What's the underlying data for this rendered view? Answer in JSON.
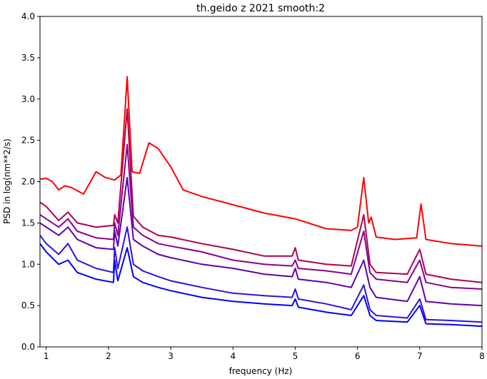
{
  "chart_data": {
    "type": "line",
    "title": "th.geido z 2021 smooth:2",
    "xlabel": "frequency (Hz)",
    "ylabel": "PSD in log(nm**2/s)",
    "xlim": [
      0.9,
      8.0
    ],
    "ylim": [
      0.0,
      4.0
    ],
    "grid": false,
    "xticks": [
      1,
      2,
      3,
      4,
      5,
      6,
      7,
      8
    ],
    "xtick_labels": [
      "1",
      "2",
      "3",
      "4",
      "5",
      "6",
      "7",
      "8"
    ],
    "yticks": [
      0.0,
      0.5,
      1.0,
      1.5,
      2.0,
      2.5,
      3.0,
      3.5,
      4.0
    ],
    "ytick_labels": [
      "0.0",
      "0.5",
      "1.0",
      "1.5",
      "2.0",
      "2.5",
      "3.0",
      "3.5",
      "4.0"
    ],
    "series": [
      {
        "color": "#ff0000",
        "points": [
          [
            0.9,
            2.03
          ],
          [
            1.0,
            2.04
          ],
          [
            1.1,
            2.0
          ],
          [
            1.2,
            1.9
          ],
          [
            1.3,
            1.95
          ],
          [
            1.4,
            1.93
          ],
          [
            1.6,
            1.85
          ],
          [
            1.8,
            2.12
          ],
          [
            1.95,
            2.05
          ],
          [
            2.1,
            2.02
          ],
          [
            2.2,
            2.08
          ],
          [
            2.3,
            3.27
          ],
          [
            2.38,
            2.12
          ],
          [
            2.5,
            2.1
          ],
          [
            2.65,
            2.47
          ],
          [
            2.8,
            2.4
          ],
          [
            3.0,
            2.18
          ],
          [
            3.2,
            1.9
          ],
          [
            3.5,
            1.82
          ],
          [
            4.0,
            1.72
          ],
          [
            4.5,
            1.62
          ],
          [
            5.0,
            1.55
          ],
          [
            5.5,
            1.43
          ],
          [
            5.9,
            1.41
          ],
          [
            6.0,
            1.45
          ],
          [
            6.1,
            2.05
          ],
          [
            6.18,
            1.5
          ],
          [
            6.22,
            1.57
          ],
          [
            6.3,
            1.33
          ],
          [
            6.6,
            1.3
          ],
          [
            6.95,
            1.32
          ],
          [
            7.02,
            1.73
          ],
          [
            7.1,
            1.3
          ],
          [
            7.5,
            1.25
          ],
          [
            8.0,
            1.22
          ]
        ]
      },
      {
        "color": "#b0004f",
        "points": [
          [
            0.9,
            1.75
          ],
          [
            1.0,
            1.7
          ],
          [
            1.2,
            1.53
          ],
          [
            1.35,
            1.63
          ],
          [
            1.5,
            1.5
          ],
          [
            1.8,
            1.45
          ],
          [
            2.08,
            1.47
          ],
          [
            2.1,
            1.6
          ],
          [
            2.15,
            1.5
          ],
          [
            2.3,
            2.88
          ],
          [
            2.4,
            1.58
          ],
          [
            2.55,
            1.45
          ],
          [
            2.8,
            1.35
          ],
          [
            3.0,
            1.33
          ],
          [
            3.5,
            1.25
          ],
          [
            4.0,
            1.18
          ],
          [
            4.5,
            1.1
          ],
          [
            4.95,
            1.1
          ],
          [
            5.0,
            1.2
          ],
          [
            5.05,
            1.05
          ],
          [
            5.5,
            1.0
          ],
          [
            5.9,
            0.98
          ],
          [
            6.1,
            1.6
          ],
          [
            6.2,
            1.0
          ],
          [
            6.3,
            0.9
          ],
          [
            6.8,
            0.88
          ],
          [
            7.0,
            1.18
          ],
          [
            7.1,
            0.88
          ],
          [
            7.5,
            0.82
          ],
          [
            8.0,
            0.78
          ]
        ]
      },
      {
        "color": "#8a0090",
        "points": [
          [
            0.9,
            1.6
          ],
          [
            1.0,
            1.55
          ],
          [
            1.2,
            1.45
          ],
          [
            1.35,
            1.55
          ],
          [
            1.5,
            1.4
          ],
          [
            1.8,
            1.32
          ],
          [
            2.08,
            1.3
          ],
          [
            2.1,
            1.5
          ],
          [
            2.15,
            1.35
          ],
          [
            2.3,
            2.45
          ],
          [
            2.4,
            1.45
          ],
          [
            2.55,
            1.35
          ],
          [
            2.8,
            1.25
          ],
          [
            3.0,
            1.22
          ],
          [
            3.5,
            1.15
          ],
          [
            4.0,
            1.05
          ],
          [
            4.5,
            1.0
          ],
          [
            4.95,
            0.98
          ],
          [
            5.0,
            1.05
          ],
          [
            5.05,
            0.95
          ],
          [
            5.5,
            0.92
          ],
          [
            5.9,
            0.88
          ],
          [
            6.1,
            1.4
          ],
          [
            6.2,
            0.9
          ],
          [
            6.3,
            0.82
          ],
          [
            6.8,
            0.78
          ],
          [
            7.0,
            1.05
          ],
          [
            7.1,
            0.78
          ],
          [
            7.5,
            0.72
          ],
          [
            8.0,
            0.7
          ]
        ]
      },
      {
        "color": "#6000b0",
        "points": [
          [
            0.9,
            1.5
          ],
          [
            1.0,
            1.45
          ],
          [
            1.2,
            1.35
          ],
          [
            1.35,
            1.45
          ],
          [
            1.5,
            1.3
          ],
          [
            1.8,
            1.2
          ],
          [
            2.08,
            1.18
          ],
          [
            2.1,
            1.4
          ],
          [
            2.15,
            1.22
          ],
          [
            2.3,
            2.05
          ],
          [
            2.4,
            1.3
          ],
          [
            2.55,
            1.22
          ],
          [
            2.8,
            1.12
          ],
          [
            3.0,
            1.08
          ],
          [
            3.5,
            1.0
          ],
          [
            4.0,
            0.95
          ],
          [
            4.5,
            0.88
          ],
          [
            4.95,
            0.85
          ],
          [
            5.0,
            0.95
          ],
          [
            5.05,
            0.82
          ],
          [
            5.5,
            0.78
          ],
          [
            5.9,
            0.72
          ],
          [
            6.1,
            1.05
          ],
          [
            6.2,
            0.72
          ],
          [
            6.3,
            0.6
          ],
          [
            6.8,
            0.55
          ],
          [
            7.0,
            0.85
          ],
          [
            7.1,
            0.55
          ],
          [
            7.5,
            0.52
          ],
          [
            8.0,
            0.5
          ]
        ]
      },
      {
        "color": "#3010e0",
        "points": [
          [
            0.9,
            1.35
          ],
          [
            1.0,
            1.25
          ],
          [
            1.2,
            1.12
          ],
          [
            1.35,
            1.25
          ],
          [
            1.5,
            1.05
          ],
          [
            1.8,
            0.95
          ],
          [
            2.08,
            0.9
          ],
          [
            2.1,
            1.2
          ],
          [
            2.15,
            0.95
          ],
          [
            2.3,
            1.45
          ],
          [
            2.4,
            1.0
          ],
          [
            2.55,
            0.92
          ],
          [
            2.8,
            0.85
          ],
          [
            3.0,
            0.8
          ],
          [
            3.5,
            0.72
          ],
          [
            4.0,
            0.65
          ],
          [
            4.5,
            0.62
          ],
          [
            4.95,
            0.6
          ],
          [
            5.0,
            0.7
          ],
          [
            5.05,
            0.58
          ],
          [
            5.5,
            0.52
          ],
          [
            5.9,
            0.45
          ],
          [
            6.1,
            0.75
          ],
          [
            6.2,
            0.45
          ],
          [
            6.3,
            0.38
          ],
          [
            6.8,
            0.35
          ],
          [
            7.0,
            0.58
          ],
          [
            7.1,
            0.33
          ],
          [
            7.5,
            0.32
          ],
          [
            8.0,
            0.3
          ]
        ]
      },
      {
        "color": "#0000ff",
        "points": [
          [
            0.9,
            1.25
          ],
          [
            1.0,
            1.15
          ],
          [
            1.2,
            1.0
          ],
          [
            1.35,
            1.05
          ],
          [
            1.5,
            0.9
          ],
          [
            1.8,
            0.82
          ],
          [
            2.08,
            0.78
          ],
          [
            2.1,
            1.05
          ],
          [
            2.15,
            0.8
          ],
          [
            2.3,
            1.2
          ],
          [
            2.4,
            0.85
          ],
          [
            2.55,
            0.78
          ],
          [
            2.8,
            0.72
          ],
          [
            3.0,
            0.68
          ],
          [
            3.5,
            0.6
          ],
          [
            4.0,
            0.55
          ],
          [
            4.5,
            0.52
          ],
          [
            4.95,
            0.5
          ],
          [
            5.0,
            0.58
          ],
          [
            5.05,
            0.48
          ],
          [
            5.5,
            0.42
          ],
          [
            5.9,
            0.38
          ],
          [
            6.1,
            0.62
          ],
          [
            6.2,
            0.38
          ],
          [
            6.3,
            0.32
          ],
          [
            6.8,
            0.3
          ],
          [
            7.0,
            0.5
          ],
          [
            7.1,
            0.28
          ],
          [
            7.5,
            0.27
          ],
          [
            8.0,
            0.25
          ]
        ]
      }
    ]
  }
}
